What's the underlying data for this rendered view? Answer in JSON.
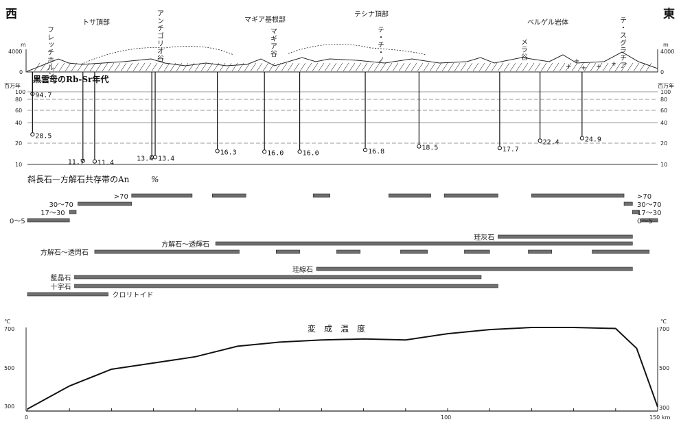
{
  "directions": {
    "west": "西",
    "east": "東"
  },
  "profile": {
    "unit_m": "m",
    "elev_ticks": [
      "4000",
      "0"
    ],
    "places": [
      {
        "id": "frecchi",
        "label": "フレッチホルン"
      },
      {
        "id": "tosa",
        "label": "トサ頂部"
      },
      {
        "id": "antigorio",
        "label": "アンチゴリオ谷"
      },
      {
        "id": "maggia_base",
        "label": "マギア基根部"
      },
      {
        "id": "maggia_valley",
        "label": "マギア谷"
      },
      {
        "id": "ticino_top",
        "label": "テシナ頂部"
      },
      {
        "id": "ticino",
        "label": "テ・チ・ノ"
      },
      {
        "id": "mera",
        "label": "メラ谷"
      },
      {
        "id": "bergell",
        "label": "ベルゲル岩体"
      },
      {
        "id": "chiasgratia",
        "label": "テ・スグラチア"
      }
    ]
  },
  "age_chart": {
    "title": "黒雲母のRb-Sr年代",
    "unit_left": "百万年",
    "unit_right": "百万年",
    "ticks": [
      "100",
      "80",
      "60",
      "40",
      "20",
      "10"
    ],
    "samples": [
      {
        "label": "94.7",
        "x": 3,
        "age": 94.7
      },
      {
        "label": "28.5",
        "x": 3,
        "age": 28.5
      },
      {
        "label": "11.7",
        "x": 33,
        "age": 11.7
      },
      {
        "label": "11.4",
        "x": 40,
        "age": 11.4
      },
      {
        "label": "13.4",
        "x": 74,
        "age": 13.4
      },
      {
        "label": "13.4",
        "x": 76,
        "age": 13.4
      },
      {
        "label": "16.3",
        "x": 113,
        "age": 16.3
      },
      {
        "label": "16.0",
        "x": 141,
        "age": 16.0
      },
      {
        "label": "16.0",
        "x": 162,
        "age": 16.0
      },
      {
        "label": "16.8",
        "x": 201,
        "age": 16.8
      },
      {
        "label": "18.5",
        "x": 233,
        "age": 18.5
      },
      {
        "label": "17.7",
        "x": 281,
        "age": 17.7
      },
      {
        "label": "22.4",
        "x": 305,
        "age": 22.4
      },
      {
        "label": "24.9",
        "x": 330,
        "age": 24.9
      }
    ]
  },
  "an_content": {
    "title": "斜長石—方解石共存帯のAn",
    "title_suffix": "%",
    "zones": [
      {
        "label": ">70",
        "segments": [
          [
            62,
            98
          ],
          [
            110,
            130
          ],
          [
            170,
            180
          ],
          [
            215,
            240
          ],
          [
            248,
            280
          ],
          [
            300,
            355
          ]
        ],
        "label_side": "left"
      },
      {
        "label": "30～70",
        "segments": [
          [
            30,
            62
          ],
          [
            355,
            360
          ]
        ],
        "label_side": "left"
      },
      {
        "label": "17～30",
        "segments": [
          [
            25,
            29
          ],
          [
            360,
            364
          ]
        ],
        "label_side": "left"
      },
      {
        "label": "0～5",
        "segments": [
          [
            0,
            25
          ],
          [
            365,
            375
          ]
        ],
        "label_side": "left"
      },
      {
        "label": ">70",
        "side": "right_end"
      },
      {
        "label": "30～70",
        "side": "right_end"
      },
      {
        "label": "17～30",
        "side": "right_end"
      },
      {
        "label": "0～5",
        "side": "right_end"
      }
    ]
  },
  "minerals": [
    {
      "label": "珪灰石",
      "segments": [
        [
          280,
          360
        ]
      ]
    },
    {
      "label": "方解石～透輝石",
      "segments": [
        [
          112,
          360
        ]
      ]
    },
    {
      "label": "方解石～透閃石",
      "segments": [
        [
          40,
          126
        ],
        [
          148,
          162
        ],
        [
          184,
          198
        ],
        [
          222,
          238
        ],
        [
          260,
          275
        ],
        [
          298,
          312
        ],
        [
          336,
          370
        ]
      ]
    },
    {
      "label": "珪線石",
      "segments": [
        [
          172,
          360
        ]
      ]
    },
    {
      "label": "藍晶石",
      "segments": [
        [
          28,
          270
        ]
      ]
    },
    {
      "label": "十字石",
      "segments": [
        [
          28,
          280
        ]
      ]
    },
    {
      "label": "クロリトイド",
      "segments": [
        [
          0,
          48
        ]
      ]
    }
  ],
  "temperature": {
    "title": "変　成　温　度",
    "unit": "℃",
    "ticks": [
      "700",
      "500",
      "300"
    ],
    "x_unit": "km",
    "x_ticks": [
      "0",
      "100",
      "150"
    ]
  },
  "chart_data": {
    "type": "line",
    "title": "変成温度",
    "xlabel": "km",
    "ylabel": "℃",
    "xlim": [
      0,
      150
    ],
    "ylim": [
      300,
      700
    ],
    "x": [
      0,
      10,
      20,
      30,
      40,
      50,
      60,
      70,
      80,
      90,
      100,
      110,
      120,
      130,
      140,
      145,
      150
    ],
    "series": [
      {
        "name": "",
        "values": [
          310,
          420,
          500,
          530,
          560,
          610,
          630,
          640,
          645,
          640,
          670,
          690,
          700,
          700,
          695,
          600,
          320
        ]
      }
    ]
  }
}
